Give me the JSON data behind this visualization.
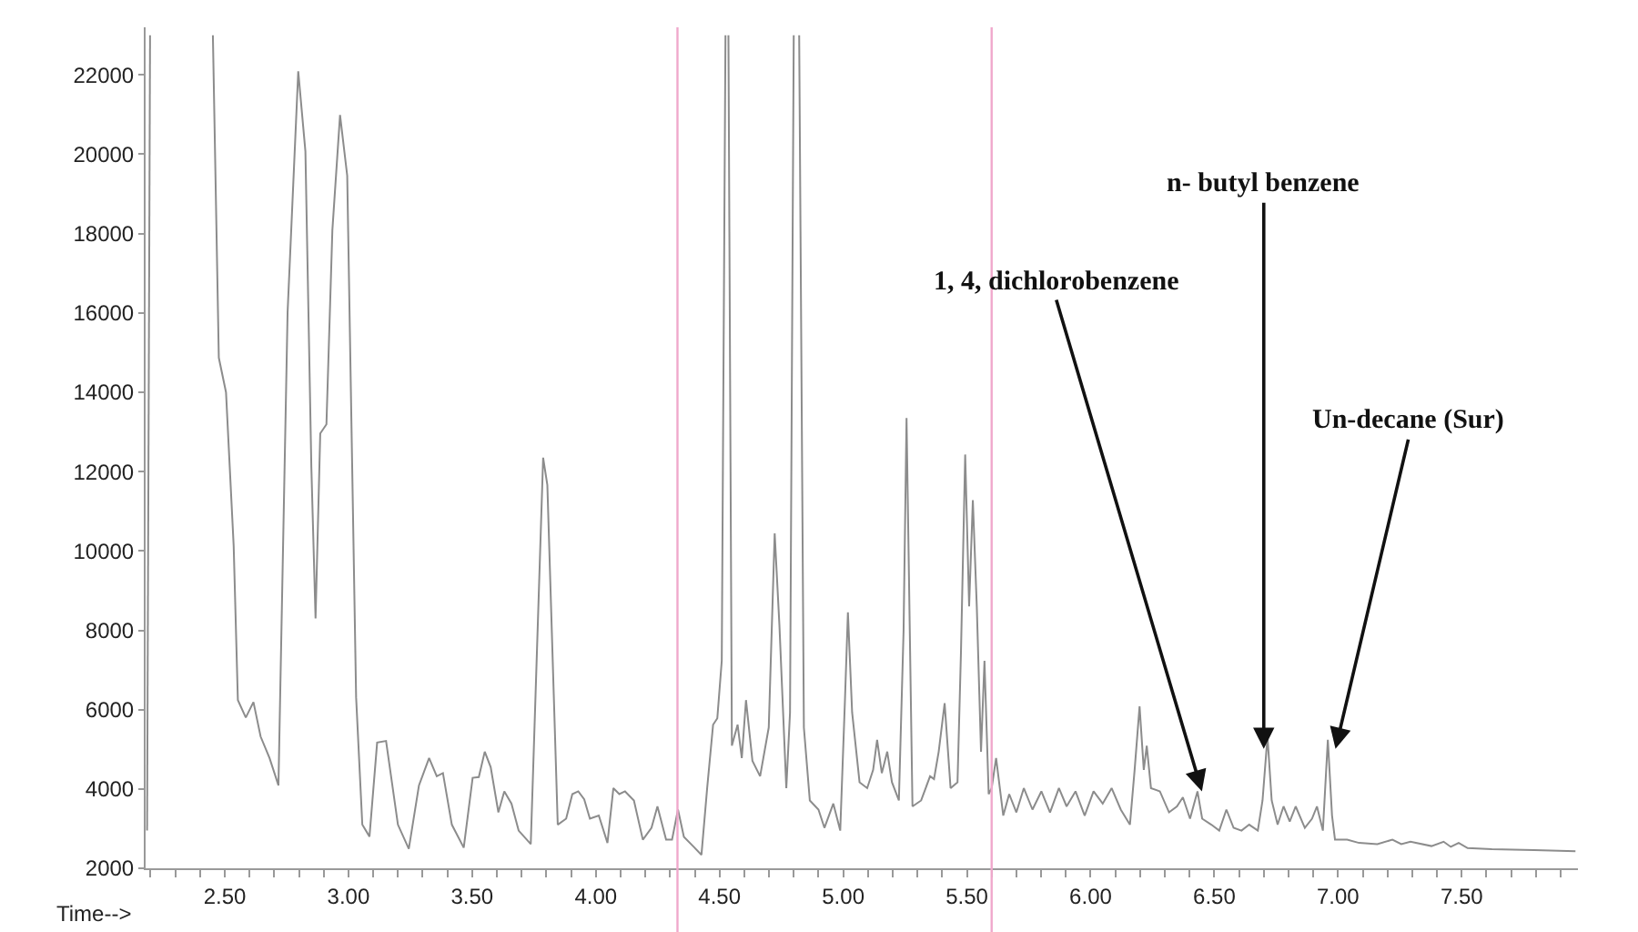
{
  "chart_data": {
    "type": "line",
    "xlabel": "Time-->",
    "x": [
      2.186,
      2.198,
      2.3,
      2.452,
      2.476,
      2.505,
      2.536,
      2.553,
      2.585,
      2.616,
      2.645,
      2.681,
      2.717,
      2.754,
      2.797,
      2.826,
      2.85,
      2.867,
      2.886,
      2.911,
      2.935,
      2.966,
      2.995,
      3.031,
      3.056,
      3.085,
      3.116,
      3.152,
      3.2,
      3.244,
      3.285,
      3.326,
      3.357,
      3.382,
      3.418,
      3.466,
      3.502,
      3.527,
      3.551,
      3.575,
      3.606,
      3.63,
      3.659,
      3.688,
      3.737,
      3.787,
      3.804,
      3.846,
      3.88,
      3.905,
      3.929,
      3.953,
      3.976,
      4.012,
      4.047,
      4.071,
      4.095,
      4.118,
      4.154,
      4.19,
      4.225,
      4.249,
      4.284,
      4.308,
      4.332,
      4.356,
      4.391,
      4.427,
      4.45,
      4.474,
      4.491,
      4.509,
      4.524,
      4.53,
      4.536,
      4.55,
      4.573,
      4.59,
      4.607,
      4.633,
      4.664,
      4.699,
      4.723,
      4.742,
      4.77,
      4.785,
      4.8,
      4.811,
      4.822,
      4.841,
      4.865,
      4.9,
      4.924,
      4.96,
      4.988,
      5.007,
      5.019,
      5.036,
      5.066,
      5.097,
      5.121,
      5.137,
      5.156,
      5.178,
      5.197,
      5.225,
      5.244,
      5.256,
      5.28,
      5.315,
      5.351,
      5.367,
      5.386,
      5.41,
      5.434,
      5.462,
      5.476,
      5.493,
      5.509,
      5.524,
      5.54,
      5.557,
      5.571,
      5.588,
      5.6,
      5.618,
      5.647,
      5.671,
      5.7,
      5.73,
      5.765,
      5.801,
      5.836,
      5.872,
      5.903,
      5.939,
      5.976,
      6.012,
      6.049,
      6.085,
      6.122,
      6.159,
      6.178,
      6.198,
      6.215,
      6.227,
      6.244,
      6.28,
      6.317,
      6.349,
      6.373,
      6.402,
      6.432,
      6.451,
      6.488,
      6.52,
      6.549,
      6.578,
      6.61,
      6.641,
      6.676,
      6.695,
      6.715,
      6.732,
      6.756,
      6.78,
      6.805,
      6.829,
      6.866,
      6.895,
      6.915,
      6.939,
      6.959,
      6.976,
      6.988,
      7.037,
      7.085,
      7.159,
      7.22,
      7.256,
      7.293,
      7.378,
      7.427,
      7.456,
      7.488,
      7.524,
      7.622,
      7.793,
      7.96
    ],
    "series": [
      {
        "color": "#8c8c8c",
        "values": [
          2950,
          23000,
          null,
          23000,
          14870,
          14000,
          10130,
          6240,
          5800,
          6190,
          5320,
          4780,
          4090,
          16020,
          22090,
          20070,
          12120,
          8300,
          12960,
          13190,
          18080,
          20990,
          19460,
          6310,
          3100,
          2800,
          5170,
          5210,
          3100,
          2490,
          4090,
          4780,
          4320,
          4400,
          3100,
          2520,
          4280,
          4300,
          4940,
          4550,
          3410,
          3940,
          3630,
          2950,
          2610,
          12350,
          11660,
          3100,
          3250,
          3870,
          3940,
          3740,
          3250,
          3330,
          2640,
          4020,
          3870,
          3940,
          3710,
          2720,
          3020,
          3560,
          2720,
          2720,
          3480,
          2790,
          2570,
          2340,
          4020,
          5620,
          5780,
          7230,
          23000,
          null,
          23000,
          5090,
          5620,
          4780,
          6240,
          4710,
          4320,
          5550,
          10440,
          8140,
          4020,
          5930,
          23000,
          null,
          23000,
          5550,
          3710,
          3480,
          3020,
          3630,
          2950,
          6240,
          8450,
          5930,
          4170,
          4020,
          4480,
          5240,
          4400,
          4940,
          4170,
          3710,
          7990,
          13350,
          3560,
          3710,
          4320,
          4250,
          4940,
          6160,
          4020,
          4170,
          7460,
          12430,
          8600,
          11280,
          8600,
          4940,
          7230,
          3870,
          4020,
          4780,
          3330,
          3870,
          3410,
          4020,
          3480,
          3940,
          3410,
          4020,
          3560,
          3940,
          3330,
          3940,
          3630,
          4020,
          3480,
          3100,
          4480,
          6080,
          4480,
          5090,
          4020,
          3940,
          3410,
          3560,
          3790,
          3250,
          3940,
          3250,
          3100,
          2950,
          3480,
          3020,
          2950,
          3100,
          2950,
          3710,
          5320,
          3710,
          3100,
          3560,
          3180,
          3560,
          3020,
          3250,
          3560,
          2950,
          5240,
          3330,
          2720,
          2720,
          2640,
          2610,
          2720,
          2610,
          2670,
          2560,
          2670,
          2540,
          2640,
          2510,
          2480,
          2460,
          2430
        ]
      }
    ],
    "xlim": [
      2.18,
      7.97
    ],
    "ylim": [
      2000,
      23200
    ],
    "xticks": [
      {
        "value": 2.2,
        "label": null
      },
      {
        "value": 2.3,
        "label": null
      },
      {
        "value": 2.4,
        "label": null
      },
      {
        "value": 2.5,
        "label": "2.50"
      },
      {
        "value": 2.6,
        "label": null
      },
      {
        "value": 2.7,
        "label": null
      },
      {
        "value": 2.8,
        "label": null
      },
      {
        "value": 2.9,
        "label": null
      },
      {
        "value": 3.0,
        "label": "3.00"
      },
      {
        "value": 3.1,
        "label": null
      },
      {
        "value": 3.2,
        "label": null
      },
      {
        "value": 3.3,
        "label": null
      },
      {
        "value": 3.4,
        "label": null
      },
      {
        "value": 3.5,
        "label": "3.50"
      },
      {
        "value": 3.6,
        "label": null
      },
      {
        "value": 3.7,
        "label": null
      },
      {
        "value": 3.8,
        "label": null
      },
      {
        "value": 3.9,
        "label": null
      },
      {
        "value": 4.0,
        "label": "4.00"
      },
      {
        "value": 4.1,
        "label": null
      },
      {
        "value": 4.2,
        "label": null
      },
      {
        "value": 4.3,
        "label": null
      },
      {
        "value": 4.4,
        "label": null
      },
      {
        "value": 4.5,
        "label": "4.50"
      },
      {
        "value": 4.6,
        "label": null
      },
      {
        "value": 4.7,
        "label": null
      },
      {
        "value": 4.8,
        "label": null
      },
      {
        "value": 4.9,
        "label": null
      },
      {
        "value": 5.0,
        "label": "5.00"
      },
      {
        "value": 5.1,
        "label": null
      },
      {
        "value": 5.2,
        "label": null
      },
      {
        "value": 5.3,
        "label": null
      },
      {
        "value": 5.4,
        "label": null
      },
      {
        "value": 5.5,
        "label": "5.50"
      },
      {
        "value": 5.6,
        "label": null
      },
      {
        "value": 5.7,
        "label": null
      },
      {
        "value": 5.8,
        "label": null
      },
      {
        "value": 5.9,
        "label": null
      },
      {
        "value": 6.0,
        "label": "6.00"
      },
      {
        "value": 6.1,
        "label": null
      },
      {
        "value": 6.2,
        "label": null
      },
      {
        "value": 6.3,
        "label": null
      },
      {
        "value": 6.4,
        "label": null
      },
      {
        "value": 6.5,
        "label": "6.50"
      },
      {
        "value": 6.6,
        "label": null
      },
      {
        "value": 6.7,
        "label": null
      },
      {
        "value": 6.8,
        "label": null
      },
      {
        "value": 6.9,
        "label": null
      },
      {
        "value": 7.0,
        "label": "7.00"
      },
      {
        "value": 7.1,
        "label": null
      },
      {
        "value": 7.2,
        "label": null
      },
      {
        "value": 7.3,
        "label": null
      },
      {
        "value": 7.4,
        "label": null
      },
      {
        "value": 7.5,
        "label": "7.50"
      },
      {
        "value": 7.6,
        "label": null
      },
      {
        "value": 7.7,
        "label": null
      },
      {
        "value": 7.8,
        "label": null
      },
      {
        "value": 7.9,
        "label": null
      }
    ],
    "yticks": [
      2000,
      4000,
      6000,
      8000,
      10000,
      12000,
      14000,
      16000,
      18000,
      20000,
      22000
    ],
    "ref_lines": [
      {
        "axis": "x",
        "value": 4.33,
        "color": "#f0a8cc"
      },
      {
        "axis": "x",
        "value": 5.6,
        "color": "#f0a8cc"
      }
    ],
    "annotations": [
      {
        "text": "1, 4, dichlorobenzene",
        "x": 6.45,
        "y": 3940
      },
      {
        "text": "n- butyl benzene",
        "x": 6.7,
        "y": 5010
      },
      {
        "text": "Un-decane (Sur)",
        "x": 6.99,
        "y": 5010
      }
    ],
    "marker": "none",
    "line_style": "solid"
  }
}
